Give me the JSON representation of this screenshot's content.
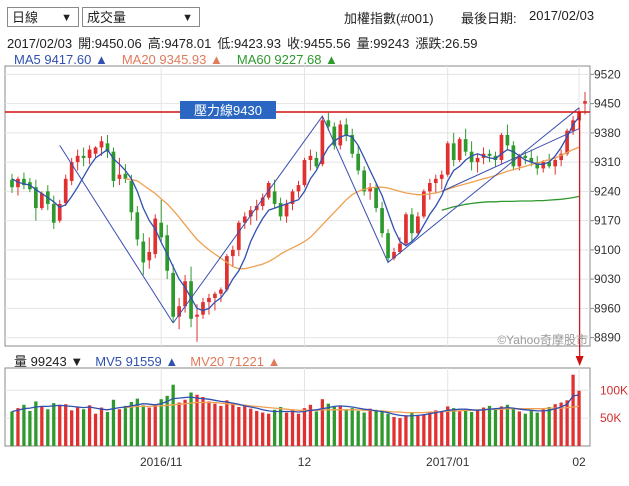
{
  "controls": {
    "period_select": "日線",
    "indicator_select": "成交量"
  },
  "header": {
    "index_name": "加權指數(#001)",
    "last_date_label": "最後日期:",
    "last_date": "2017/02/03"
  },
  "quote": {
    "date": "2017/02/03",
    "open_label": "開:",
    "open": "9450.06",
    "high_label": "高:",
    "high": "9478.01",
    "low_label": "低:",
    "low": "9423.93",
    "close_label": "收:",
    "close": "9455.56",
    "volume_label": "量:",
    "volume": "99243",
    "change_label": "漲跌:",
    "change": "26.59"
  },
  "ma_legend": {
    "ma5": "MA5 9417.60 ▲",
    "ma20": "MA20 9345.93 ▲",
    "ma60": "MA60 9227.68 ▲"
  },
  "vol_legend": {
    "vol": "量 99243 ▼",
    "mv5": "MV5 91559 ▲",
    "mv20": "MV20 71221 ▲"
  },
  "annotation": {
    "resistance_label": "壓力線9430",
    "resistance_value": 9430
  },
  "watermark": "©Yahoo奇摩股市",
  "colors": {
    "up": "#e03030",
    "down": "#2e9a2e",
    "ma5": "#3050b0",
    "ma20": "#f0a050",
    "ma60": "#2e9a2e",
    "resistance": "#d01010",
    "label_bg": "#2a66c2"
  },
  "chart_data": {
    "type": "candlestick",
    "price_ticks": [
      9520,
      9450,
      9380,
      9310,
      9240,
      9170,
      9100,
      9030,
      8960,
      8890
    ],
    "price_range": [
      8870,
      9540
    ],
    "volume_ticks": [
      "100K",
      "50K"
    ],
    "volume_range": [
      0,
      140000
    ],
    "x_labels": [
      {
        "index": 25,
        "label": "2016/11"
      },
      {
        "index": 49,
        "label": "12"
      },
      {
        "index": 73,
        "label": "2017/01"
      },
      {
        "index": 95,
        "label": "02"
      }
    ],
    "candles": [
      [
        9268,
        9282,
        9236,
        9250
      ],
      [
        9250,
        9275,
        9230,
        9270
      ],
      [
        9270,
        9285,
        9245,
        9255
      ],
      [
        9262,
        9272,
        9238,
        9245
      ],
      [
        9250,
        9268,
        9170,
        9200
      ],
      [
        9200,
        9240,
        9195,
        9235
      ],
      [
        9240,
        9255,
        9195,
        9210
      ],
      [
        9210,
        9230,
        9150,
        9165
      ],
      [
        9170,
        9220,
        9165,
        9210
      ],
      [
        9212,
        9280,
        9205,
        9270
      ],
      [
        9265,
        9320,
        9255,
        9310
      ],
      [
        9310,
        9340,
        9290,
        9325
      ],
      [
        9325,
        9345,
        9300,
        9320
      ],
      [
        9320,
        9350,
        9305,
        9340
      ],
      [
        9330,
        9348,
        9320,
        9345
      ],
      [
        9345,
        9372,
        9325,
        9360
      ],
      [
        9355,
        9375,
        9320,
        9335
      ],
      [
        9335,
        9345,
        9250,
        9265
      ],
      [
        9270,
        9320,
        9255,
        9280
      ],
      [
        9282,
        9305,
        9260,
        9270
      ],
      [
        9265,
        9280,
        9170,
        9190
      ],
      [
        9190,
        9205,
        9110,
        9125
      ],
      [
        9120,
        9140,
        9040,
        9070
      ],
      [
        9075,
        9130,
        9055,
        9095
      ],
      [
        9090,
        9185,
        9080,
        9175
      ],
      [
        9165,
        9220,
        9120,
        9130
      ],
      [
        9135,
        9160,
        9030,
        9050
      ],
      [
        9045,
        9065,
        8925,
        8940
      ],
      [
        8940,
        8985,
        8910,
        8965
      ],
      [
        8965,
        9040,
        8950,
        9025
      ],
      [
        9025,
        9060,
        8915,
        8935
      ],
      [
        8940,
        8970,
        8880,
        8945
      ],
      [
        8945,
        8985,
        8935,
        8975
      ],
      [
        8975,
        8995,
        8945,
        8985
      ],
      [
        8985,
        9000,
        8955,
        8995
      ],
      [
        8995,
        9010,
        8975,
        9005
      ],
      [
        9005,
        9090,
        9000,
        9085
      ],
      [
        9085,
        9110,
        9060,
        9100
      ],
      [
        9100,
        9170,
        9085,
        9165
      ],
      [
        9165,
        9190,
        9150,
        9180
      ],
      [
        9180,
        9205,
        9160,
        9195
      ],
      [
        9195,
        9220,
        9170,
        9205
      ],
      [
        9205,
        9235,
        9195,
        9225
      ],
      [
        9225,
        9265,
        9220,
        9260
      ],
      [
        9240,
        9268,
        9200,
        9210
      ],
      [
        9212,
        9225,
        9170,
        9180
      ],
      [
        9180,
        9220,
        9165,
        9210
      ],
      [
        9210,
        9245,
        9195,
        9240
      ],
      [
        9240,
        9265,
        9225,
        9255
      ],
      [
        9255,
        9320,
        9250,
        9315
      ],
      [
        9315,
        9340,
        9290,
        9325
      ],
      [
        9320,
        9335,
        9295,
        9300
      ],
      [
        9305,
        9420,
        9300,
        9410
      ],
      [
        9410,
        9428,
        9385,
        9395
      ],
      [
        9395,
        9405,
        9340,
        9350
      ],
      [
        9350,
        9410,
        9340,
        9400
      ],
      [
        9400,
        9415,
        9360,
        9375
      ],
      [
        9375,
        9390,
        9320,
        9330
      ],
      [
        9330,
        9350,
        9280,
        9290
      ],
      [
        9290,
        9300,
        9230,
        9240
      ],
      [
        9240,
        9260,
        9220,
        9250
      ],
      [
        9250,
        9260,
        9190,
        9200
      ],
      [
        9200,
        9215,
        9130,
        9140
      ],
      [
        9140,
        9150,
        9070,
        9080
      ],
      [
        9080,
        9105,
        9075,
        9095
      ],
      [
        9095,
        9130,
        9090,
        9115
      ],
      [
        9115,
        9190,
        9110,
        9185
      ],
      [
        9185,
        9200,
        9120,
        9140
      ],
      [
        9140,
        9190,
        9135,
        9180
      ],
      [
        9180,
        9245,
        9175,
        9240
      ],
      [
        9240,
        9270,
        9220,
        9260
      ],
      [
        9260,
        9280,
        9235,
        9270
      ],
      [
        9270,
        9290,
        9245,
        9280
      ],
      [
        9280,
        9360,
        9275,
        9355
      ],
      [
        9355,
        9380,
        9300,
        9315
      ],
      [
        9315,
        9370,
        9310,
        9365
      ],
      [
        9365,
        9390,
        9325,
        9335
      ],
      [
        9335,
        9360,
        9290,
        9310
      ],
      [
        9310,
        9330,
        9285,
        9320
      ],
      [
        9320,
        9345,
        9305,
        9330
      ],
      [
        9330,
        9340,
        9310,
        9325
      ],
      [
        9325,
        9335,
        9300,
        9315
      ],
      [
        9315,
        9380,
        9305,
        9375
      ],
      [
        9375,
        9400,
        9340,
        9350
      ],
      [
        9350,
        9360,
        9290,
        9300
      ],
      [
        9300,
        9330,
        9290,
        9325
      ],
      [
        9325,
        9335,
        9305,
        9320
      ],
      [
        9320,
        9340,
        9300,
        9310
      ],
      [
        9310,
        9325,
        9280,
        9295
      ],
      [
        9295,
        9315,
        9285,
        9310
      ],
      [
        9310,
        9330,
        9295,
        9300
      ],
      [
        9300,
        9320,
        9280,
        9315
      ],
      [
        9315,
        9340,
        9300,
        9330
      ],
      [
        9330,
        9390,
        9325,
        9385
      ],
      [
        9385,
        9420,
        9375,
        9410
      ],
      [
        9410,
        9440,
        9390,
        9429
      ],
      [
        9450,
        9478,
        9424,
        9456
      ]
    ],
    "volumes": [
      62000,
      68000,
      74000,
      63000,
      80000,
      70000,
      66000,
      77000,
      72000,
      75000,
      64000,
      70000,
      66000,
      73000,
      58000,
      69000,
      61000,
      83000,
      66000,
      72000,
      79000,
      85000,
      73000,
      69000,
      75000,
      84000,
      90000,
      110000,
      78000,
      83000,
      96000,
      92000,
      88000,
      80000,
      76000,
      72000,
      82000,
      76000,
      70000,
      74000,
      67000,
      63000,
      60000,
      58000,
      65000,
      70000,
      60000,
      64000,
      58000,
      68000,
      74000,
      62000,
      84000,
      76000,
      70000,
      72000,
      66000,
      68000,
      63000,
      60000,
      67000,
      65000,
      62000,
      58000,
      52000,
      50000,
      55000,
      60000,
      54000,
      57000,
      60000,
      64000,
      62000,
      71000,
      68000,
      63000,
      66000,
      61000,
      64000,
      69000,
      72000,
      65000,
      71000,
      74000,
      68000,
      62000,
      58000,
      63000,
      60000,
      66000,
      70000,
      75000,
      78000,
      82000,
      128000,
      99243
    ],
    "ma5": [
      9270,
      9262,
      9258,
      9255,
      9244,
      9235,
      9225,
      9215,
      9202,
      9208,
      9228,
      9250,
      9275,
      9300,
      9320,
      9330,
      9340,
      9318,
      9305,
      9290,
      9270,
      9240,
      9200,
      9170,
      9150,
      9118,
      9090,
      9060,
      9030,
      9010,
      8985,
      8960,
      8955,
      8960,
      8975,
      8985,
      9005,
      9030,
      9050,
      9080,
      9120,
      9150,
      9175,
      9195,
      9200,
      9205,
      9210,
      9215,
      9220,
      9240,
      9270,
      9290,
      9320,
      9345,
      9360,
      9370,
      9375,
      9370,
      9350,
      9320,
      9290,
      9260,
      9230,
      9190,
      9150,
      9120,
      9110,
      9120,
      9135,
      9160,
      9185,
      9205,
      9230,
      9265,
      9290,
      9300,
      9315,
      9325,
      9330,
      9325,
      9320,
      9318,
      9330,
      9340,
      9335,
      9325,
      9315,
      9310,
      9305,
      9305,
      9310,
      9325,
      9345,
      9370,
      9400,
      9418
    ],
    "ma20": [
      null,
      null,
      null,
      null,
      null,
      null,
      null,
      null,
      null,
      null,
      null,
      null,
      null,
      null,
      null,
      null,
      null,
      null,
      null,
      9270,
      9268,
      9265,
      9255,
      9245,
      9235,
      9222,
      9210,
      9195,
      9178,
      9160,
      9142,
      9125,
      9112,
      9100,
      9090,
      9080,
      9070,
      9060,
      9055,
      9055,
      9058,
      9062,
      9066,
      9072,
      9080,
      9090,
      9098,
      9105,
      9112,
      9120,
      9130,
      9145,
      9160,
      9175,
      9190,
      9205,
      9220,
      9232,
      9240,
      9245,
      9248,
      9250,
      9250,
      9248,
      9244,
      9240,
      9236,
      9234,
      9232,
      9232,
      9234,
      9236,
      9240,
      9245,
      9250,
      9254,
      9258,
      9262,
      9266,
      9270,
      9274,
      9278,
      9283,
      9288,
      9292,
      9296,
      9300,
      9304,
      9308,
      9312,
      9316,
      9320,
      9326,
      9333,
      9340,
      9346
    ],
    "ma60": [
      null,
      null,
      null,
      null,
      null,
      null,
      null,
      null,
      null,
      null,
      null,
      null,
      null,
      null,
      null,
      null,
      null,
      null,
      null,
      null,
      null,
      null,
      null,
      null,
      null,
      null,
      null,
      null,
      null,
      null,
      null,
      null,
      null,
      null,
      null,
      null,
      null,
      null,
      null,
      null,
      null,
      null,
      null,
      null,
      null,
      null,
      null,
      null,
      null,
      null,
      null,
      null,
      null,
      null,
      null,
      null,
      null,
      null,
      null,
      null,
      null,
      null,
      null,
      null,
      null,
      null,
      null,
      null,
      null,
      null,
      null,
      null,
      9195,
      9199,
      9203,
      9206,
      9209,
      9211,
      9213,
      9214,
      9215,
      9215,
      9216,
      9216,
      9216,
      9217,
      9217,
      9217,
      9218,
      9218,
      9219,
      9220,
      9221,
      9223,
      9225,
      9228
    ],
    "mv5": [
      62000,
      64000,
      67000,
      68000,
      70000,
      71000,
      71000,
      72000,
      73000,
      72000,
      71000,
      70000,
      69000,
      70000,
      68000,
      66000,
      65000,
      67000,
      69000,
      70000,
      72000,
      74000,
      76000,
      75000,
      74000,
      76000,
      80000,
      85000,
      86000,
      87000,
      88000,
      86000,
      85000,
      84000,
      82000,
      80000,
      79000,
      77000,
      75000,
      72000,
      70000,
      68000,
      65000,
      63000,
      62000,
      62000,
      62000,
      62000,
      61000,
      62000,
      64000,
      65000,
      67000,
      69000,
      71000,
      72000,
      71000,
      70000,
      68000,
      66000,
      65000,
      63000,
      62000,
      60000,
      57000,
      55000,
      54000,
      54000,
      55000,
      56000,
      58000,
      60000,
      62000,
      64000,
      65000,
      66000,
      66000,
      65000,
      64000,
      65000,
      66000,
      67000,
      68000,
      69000,
      68000,
      66000,
      65000,
      64000,
      63000,
      63000,
      64000,
      67000,
      70000,
      75000,
      90000,
      91559
    ],
    "mv20": [
      null,
      null,
      null,
      null,
      null,
      null,
      null,
      null,
      null,
      null,
      null,
      null,
      null,
      null,
      null,
      null,
      null,
      null,
      null,
      69000,
      70000,
      71000,
      71000,
      71000,
      72000,
      72000,
      73000,
      74000,
      75000,
      76000,
      77000,
      78000,
      78000,
      78000,
      78000,
      77000,
      76000,
      75000,
      74000,
      73000,
      72000,
      71000,
      70000,
      69000,
      68000,
      67000,
      66000,
      65000,
      64000,
      64000,
      64000,
      64000,
      65000,
      65000,
      65000,
      65000,
      65000,
      65000,
      65000,
      64000,
      64000,
      63000,
      63000,
      62000,
      61000,
      61000,
      60000,
      60000,
      60000,
      60000,
      61000,
      61000,
      62000,
      62000,
      63000,
      63000,
      64000,
      64000,
      65000,
      65000,
      66000,
      66000,
      66000,
      67000,
      67000,
      67000,
      67000,
      67000,
      67000,
      67000,
      68000,
      68000,
      68000,
      69000,
      70000,
      71221
    ]
  }
}
